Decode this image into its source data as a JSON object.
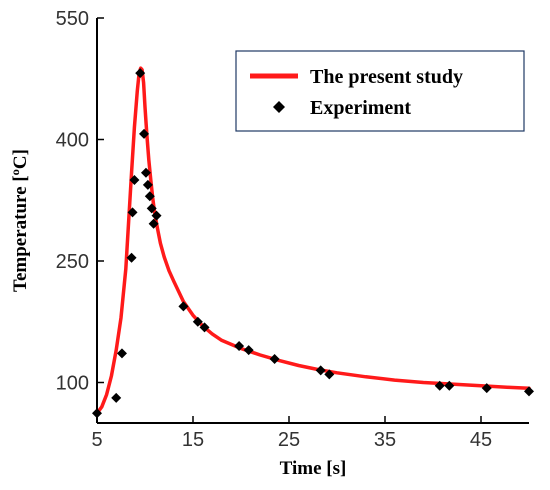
{
  "chart_data": {
    "type": "line",
    "title": "",
    "xlabel": "Time [s]",
    "ylabel": "Temperature [ºC]",
    "xlim": [
      5,
      50
    ],
    "ylim": [
      50,
      550
    ],
    "x_ticks": [
      5,
      15,
      25,
      35,
      45
    ],
    "y_ticks": [
      100,
      250,
      400,
      550
    ],
    "grid": false,
    "legend_position": "top-right",
    "colors": {
      "line": "#ff1a1a",
      "marker": "#000000",
      "axis": "#000000",
      "legend_border": "#1f3864"
    },
    "series": [
      {
        "name": "The present study",
        "kind": "line",
        "x": [
          5.0,
          5.5,
          6.0,
          6.5,
          7.0,
          7.5,
          8.0,
          8.3,
          8.6,
          8.9,
          9.2,
          9.4,
          9.55,
          9.7,
          9.85,
          10.0,
          10.2,
          10.4,
          10.6,
          10.8,
          11.0,
          11.3,
          11.6,
          12.0,
          12.5,
          13.0,
          14.0,
          15.0,
          16.0,
          17.0,
          18.0,
          20.0,
          22.0,
          24.0,
          26.0,
          28.0,
          30.0,
          33.0,
          36.0,
          39.0,
          42.0,
          45.0,
          48.0,
          50.0
        ],
        "y": [
          62,
          70,
          85,
          108,
          140,
          180,
          240,
          300,
          360,
          415,
          460,
          483,
          488,
          486,
          470,
          440,
          405,
          375,
          350,
          328,
          310,
          290,
          272,
          255,
          238,
          225,
          200,
          183,
          170,
          160,
          152,
          142,
          134,
          127,
          121,
          116,
          112,
          107,
          103,
          100,
          98,
          96,
          94,
          93
        ]
      },
      {
        "name": "Experiment",
        "kind": "scatter",
        "marker": "diamond",
        "x": [
          5.0,
          7.0,
          7.6,
          8.6,
          8.7,
          8.9,
          9.5,
          9.9,
          10.1,
          10.3,
          10.5,
          10.7,
          10.9,
          11.2,
          14.0,
          15.5,
          16.2,
          19.8,
          20.8,
          23.5,
          28.3,
          29.2,
          40.7,
          41.7,
          45.6,
          50.0
        ],
        "y": [
          62,
          81,
          136,
          254,
          310,
          350,
          482,
          407,
          359,
          344,
          330,
          315,
          296,
          306,
          194,
          175,
          168,
          145,
          140,
          129,
          115,
          110,
          96,
          96,
          93,
          89
        ]
      }
    ]
  }
}
